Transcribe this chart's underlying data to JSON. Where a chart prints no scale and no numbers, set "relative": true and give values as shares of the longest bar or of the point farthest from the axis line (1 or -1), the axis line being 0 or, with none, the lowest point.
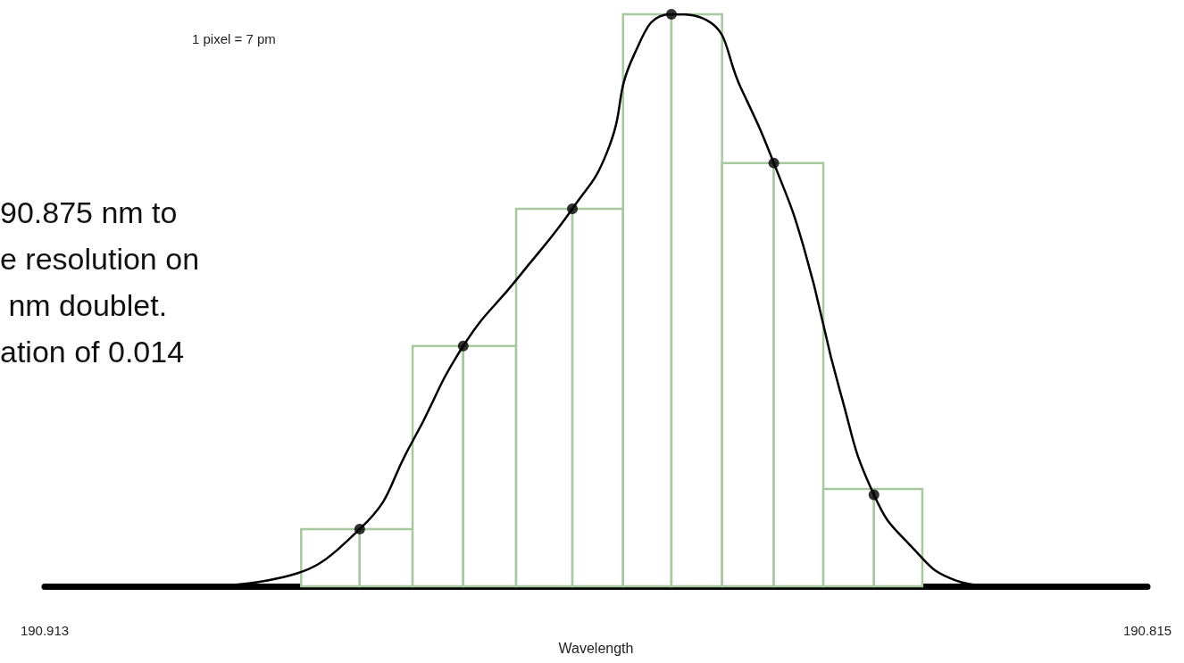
{
  "chart_data": {
    "type": "histogram",
    "xlabel": "Wavelength",
    "relative": true,
    "xlim": [
      190.913,
      190.815
    ],
    "xticks": [
      190.913,
      190.815
    ],
    "grid": false,
    "annotations": [
      "1 pixel = 7 pm",
      "90.875 nm to\ne resolution on\n nm doublet.\nation of 0.014"
    ],
    "bins": [
      190.8902,
      190.885,
      190.8803,
      190.8758,
      190.8711,
      190.8661,
      190.8616,
      190.8573,
      190.8528,
      190.8482,
      190.8438,
      190.8393,
      190.835
    ],
    "series": [
      {
        "color": "#a8c8a0",
        "values": [
          0.1,
          0.1,
          0.42,
          0.42,
          0.66,
          0.66,
          1.0,
          1.0,
          0.74,
          0.74,
          0.17,
          0.17
        ]
      },
      {
        "type": "line",
        "color": "#000000",
        "marker": "none",
        "x": [
          190.8987,
          190.8932,
          190.885,
          190.8804,
          190.8758,
          190.8709,
          190.8661,
          190.863,
          190.8606,
          190.8573,
          190.8542,
          190.8511,
          190.8482,
          190.8455,
          190.8423,
          190.8393,
          190.836,
          190.832,
          190.8288
        ],
        "values": [
          0,
          0.01,
          0.1,
          0.25,
          0.42,
          0.54,
          0.66,
          0.76,
          0.93,
          1.0,
          0.99,
          0.87,
          0.74,
          0.59,
          0.34,
          0.16,
          0.07,
          0.01,
          0
        ]
      },
      {
        "type": "scatter",
        "color": "#000000",
        "marker": "circle",
        "x": [
          190.885,
          190.8758,
          190.8661,
          190.8573,
          190.8482,
          190.8393
        ],
        "values": [
          0.1,
          0.42,
          0.66,
          1.0,
          0.74,
          0.16
        ]
      }
    ]
  }
}
